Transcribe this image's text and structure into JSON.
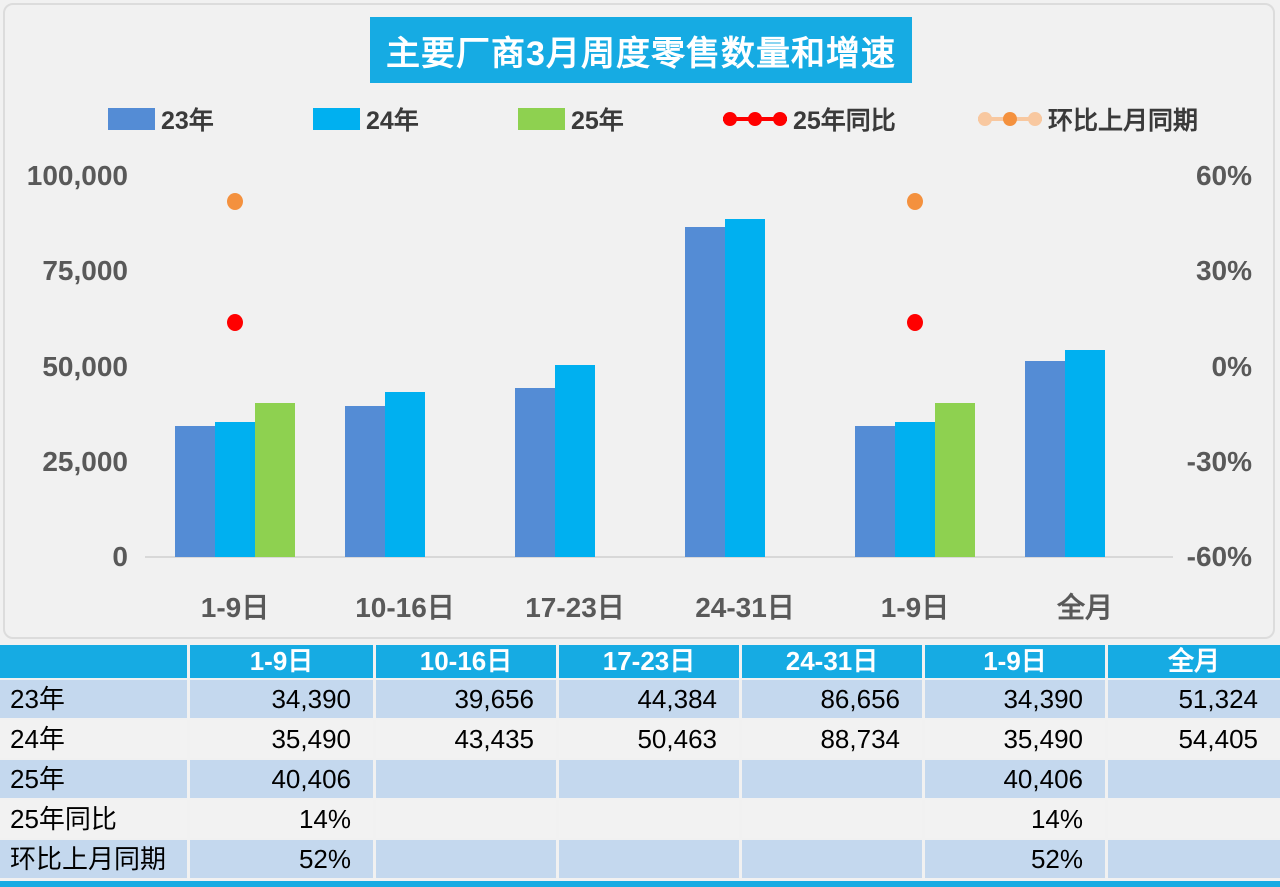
{
  "title": "主要厂商3月周度零售数量和增速",
  "colors": {
    "accent_cyan": "#16ABE3",
    "bar_blue": "#548CD5",
    "bar_cyan": "#00B0F0",
    "bar_green": "#8ED150",
    "line_red": "#FF0000",
    "dot_orange": "#F4913E",
    "dot_orange_light": "#F8C8A0",
    "row_blue": "#C4D8EE",
    "row_gray": "#F2F2F2",
    "axis_text": "#595959"
  },
  "legend": [
    {
      "label": "23年",
      "marker": "square",
      "color": "#548CD5"
    },
    {
      "label": "24年",
      "marker": "square",
      "color": "#00B0F0"
    },
    {
      "label": "25年",
      "marker": "square",
      "color": "#8ED150"
    },
    {
      "label": "25年同比",
      "marker": "line",
      "color": "#FF0000",
      "edge_color": "#FF0000"
    },
    {
      "label": "环比上月同期",
      "marker": "line",
      "color": "#F4913E",
      "edge_color": "#F8C8A0"
    }
  ],
  "chart_data": {
    "type": "bar",
    "title": "主要厂商3月周度零售数量和增速",
    "categories": [
      "1-9日",
      "10-16日",
      "17-23日",
      "24-31日",
      "1-9日",
      "全月"
    ],
    "series": [
      {
        "name": "23年",
        "type": "bar",
        "axis": "left",
        "color": "#548CD5",
        "values": [
          34390,
          39656,
          44384,
          86656,
          34390,
          51324
        ]
      },
      {
        "name": "24年",
        "type": "bar",
        "axis": "left",
        "color": "#00B0F0",
        "values": [
          35490,
          43435,
          50463,
          88734,
          35490,
          54405
        ]
      },
      {
        "name": "25年",
        "type": "bar",
        "axis": "left",
        "color": "#8ED150",
        "values": [
          40406,
          null,
          null,
          null,
          40406,
          null
        ]
      },
      {
        "name": "25年同比",
        "type": "scatter",
        "axis": "right",
        "color": "#FF0000",
        "values": [
          14,
          null,
          null,
          null,
          14,
          null
        ],
        "unit": "%"
      },
      {
        "name": "环比上月同期",
        "type": "scatter",
        "axis": "right",
        "color": "#F4913E",
        "values": [
          52,
          null,
          null,
          null,
          52,
          null
        ],
        "unit": "%"
      }
    ],
    "left_axis": {
      "min": 0,
      "max": 100000,
      "step": 25000,
      "ticks": [
        "100,000",
        "75,000",
        "50,000",
        "25,000",
        "0"
      ]
    },
    "right_axis": {
      "min": -60,
      "max": 60,
      "step": 30,
      "ticks": [
        "60%",
        "30%",
        "0%",
        "-30%",
        "-60%"
      ]
    },
    "legend_position": "top",
    "grid": false
  },
  "table": {
    "headers": [
      "",
      "1-9日",
      "10-16日",
      "17-23日",
      "24-31日",
      "1-9日",
      "全月"
    ],
    "rows": [
      {
        "label": "23年",
        "cells": [
          "34,390",
          "39,656",
          "44,384",
          "86,656",
          "34,390",
          "51,324"
        ]
      },
      {
        "label": "24年",
        "cells": [
          "35,490",
          "43,435",
          "50,463",
          "88,734",
          "35,490",
          "54,405"
        ]
      },
      {
        "label": "25年",
        "cells": [
          "40,406",
          "",
          "",
          "",
          "40,406",
          ""
        ]
      },
      {
        "label": "25年同比",
        "cells": [
          "14%",
          "",
          "",
          "",
          "14%",
          ""
        ]
      },
      {
        "label": "环比上月同期",
        "cells": [
          "52%",
          "",
          "",
          "",
          "52%",
          ""
        ]
      }
    ]
  }
}
